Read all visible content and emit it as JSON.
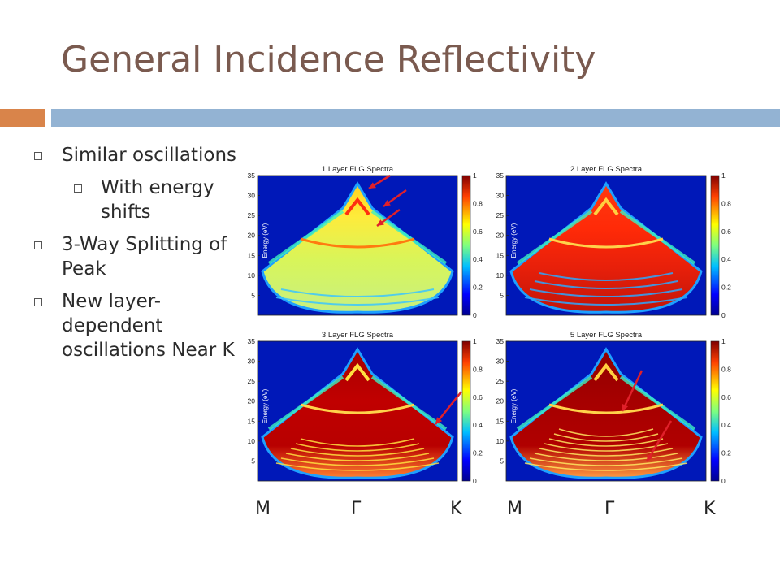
{
  "slide": {
    "title": "General Incidence Reflectivity",
    "bullets": [
      {
        "text": "Similar oscillations",
        "level": 1
      },
      {
        "text": "With energy shifts",
        "level": 2
      },
      {
        "text": "3-Way Splitting of Peak",
        "level": 1
      },
      {
        "text": "New layer-dependent oscillations Near K",
        "level": 1
      }
    ],
    "colors": {
      "title": "#7a5a4f",
      "accent_orange": "#d9844a",
      "accent_blue": "#93b3d3",
      "arrow": "#e0202a"
    },
    "k_path_left": [
      "M",
      "Γ",
      "K"
    ],
    "k_path_right": [
      "M",
      "Γ",
      "K"
    ]
  },
  "chart_data": [
    {
      "type": "heatmap",
      "title": "1 Layer FLG Spectra",
      "ylabel": "Energy (eV)",
      "yticks": [
        5,
        10,
        15,
        20,
        25,
        30,
        35
      ],
      "ylim": [
        0,
        35
      ],
      "colorbar_ticks": [
        0,
        0.2,
        0.4,
        0.6,
        0.8,
        1
      ],
      "clim": [
        0,
        1
      ],
      "annotation_arrows": 3
    },
    {
      "type": "heatmap",
      "title": "2 Layer FLG Spectra",
      "ylabel": "Energy (eV)",
      "yticks": [
        5,
        10,
        15,
        20,
        25,
        30,
        35
      ],
      "ylim": [
        0,
        35
      ],
      "colorbar_ticks": [
        0,
        0.2,
        0.4,
        0.6,
        0.8,
        1
      ],
      "clim": [
        0,
        1
      ],
      "annotation_arrows": 0
    },
    {
      "type": "heatmap",
      "title": "3 Layer FLG Spectra",
      "ylabel": "Energy (eV)",
      "yticks": [
        5,
        10,
        15,
        20,
        25,
        30,
        35
      ],
      "ylim": [
        0,
        35
      ],
      "colorbar_ticks": [
        0,
        0.2,
        0.4,
        0.6,
        0.8,
        1
      ],
      "clim": [
        0,
        1
      ],
      "annotation_arrows": 1
    },
    {
      "type": "heatmap",
      "title": "5 Layer FLG Spectra",
      "ylabel": "Energy (eV)",
      "yticks": [
        5,
        10,
        15,
        20,
        25,
        30,
        35
      ],
      "ylim": [
        0,
        35
      ],
      "colorbar_ticks": [
        0,
        0.2,
        0.4,
        0.6,
        0.8,
        1
      ],
      "clim": [
        0,
        1
      ],
      "annotation_arrows": 2
    }
  ]
}
